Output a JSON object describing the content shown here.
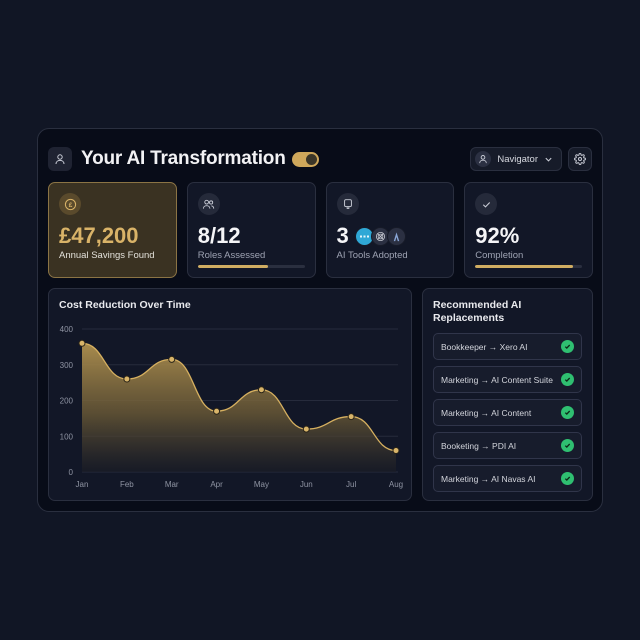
{
  "header": {
    "title": "Your AI Transformation",
    "toggle_on": true,
    "role_select": "Navigator"
  },
  "stats": [
    {
      "value": "£47,200",
      "label": "Annual Savings Found",
      "icon": "pound-coin-icon"
    },
    {
      "value": "8/12",
      "label": "Roles Assessed",
      "icon": "users-icon",
      "progress": 66
    },
    {
      "value": "3",
      "label": "AI Tools Adopted",
      "icon": "tablet-icon",
      "tools": [
        "chat-tool-icon",
        "openai-icon",
        "anthropic-icon"
      ]
    },
    {
      "value": "92%",
      "label": "Completion",
      "icon": "check-icon",
      "progress": 92
    }
  ],
  "chart": {
    "title": "Cost Reduction Over Time"
  },
  "chart_data": {
    "type": "area",
    "title": "Cost Reduction Over Time",
    "categories": [
      "Jan",
      "Feb",
      "Mar",
      "Apr",
      "May",
      "Jun",
      "Jul",
      "Aug"
    ],
    "values": [
      360,
      260,
      315,
      170,
      230,
      120,
      155,
      60
    ],
    "yticks": [
      0,
      100,
      200,
      300,
      400
    ],
    "ylim": [
      0,
      400
    ],
    "xlabel": "",
    "ylabel": "",
    "grid": true,
    "color": "#d6b060"
  },
  "recommendations": {
    "title": "Recommended AI Replacements",
    "items": [
      {
        "label": "Bookkeeper → Xero AI"
      },
      {
        "label": "Marketing → AI Content Suite"
      },
      {
        "label": "Marketing → AI Content"
      },
      {
        "label": "Booketing → PDI AI"
      },
      {
        "label": "Marketing → AI Navas AI"
      }
    ]
  },
  "colors": {
    "accent": "#d0ad62",
    "success": "#2fbf71",
    "background": "#111625",
    "panel": "#121727"
  }
}
